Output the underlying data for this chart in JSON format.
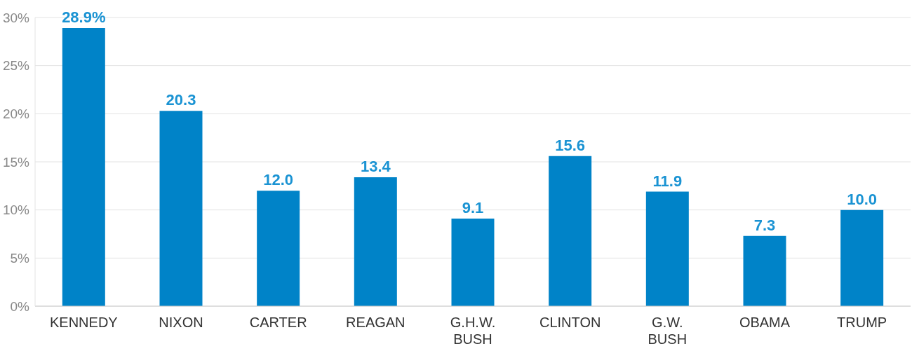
{
  "chart_data": {
    "type": "bar",
    "categories": [
      "KENNEDY",
      "NIXON",
      "CARTER",
      "REAGAN",
      "G.H.W. BUSH",
      "CLINTON",
      "G.W. BUSH",
      "OBAMA",
      "TRUMP"
    ],
    "values": [
      28.9,
      20.3,
      12.0,
      13.4,
      9.1,
      15.6,
      11.9,
      7.3,
      10.0
    ],
    "value_labels": [
      "28.9%",
      "20.3",
      "12.0",
      "13.4",
      "9.1",
      "15.6",
      "11.9",
      "7.3",
      "10.0"
    ],
    "color": "#0083c8",
    "ylim": [
      0,
      30
    ],
    "yticks": [
      {
        "value": 0,
        "label": "0%"
      },
      {
        "value": 5,
        "label": "5%"
      },
      {
        "value": 10,
        "label": "10%"
      },
      {
        "value": 15,
        "label": "15%"
      },
      {
        "value": 20,
        "label": "20%"
      },
      {
        "value": 25,
        "label": "25%"
      },
      {
        "value": 30,
        "label": "30%"
      }
    ],
    "grid": "y"
  }
}
